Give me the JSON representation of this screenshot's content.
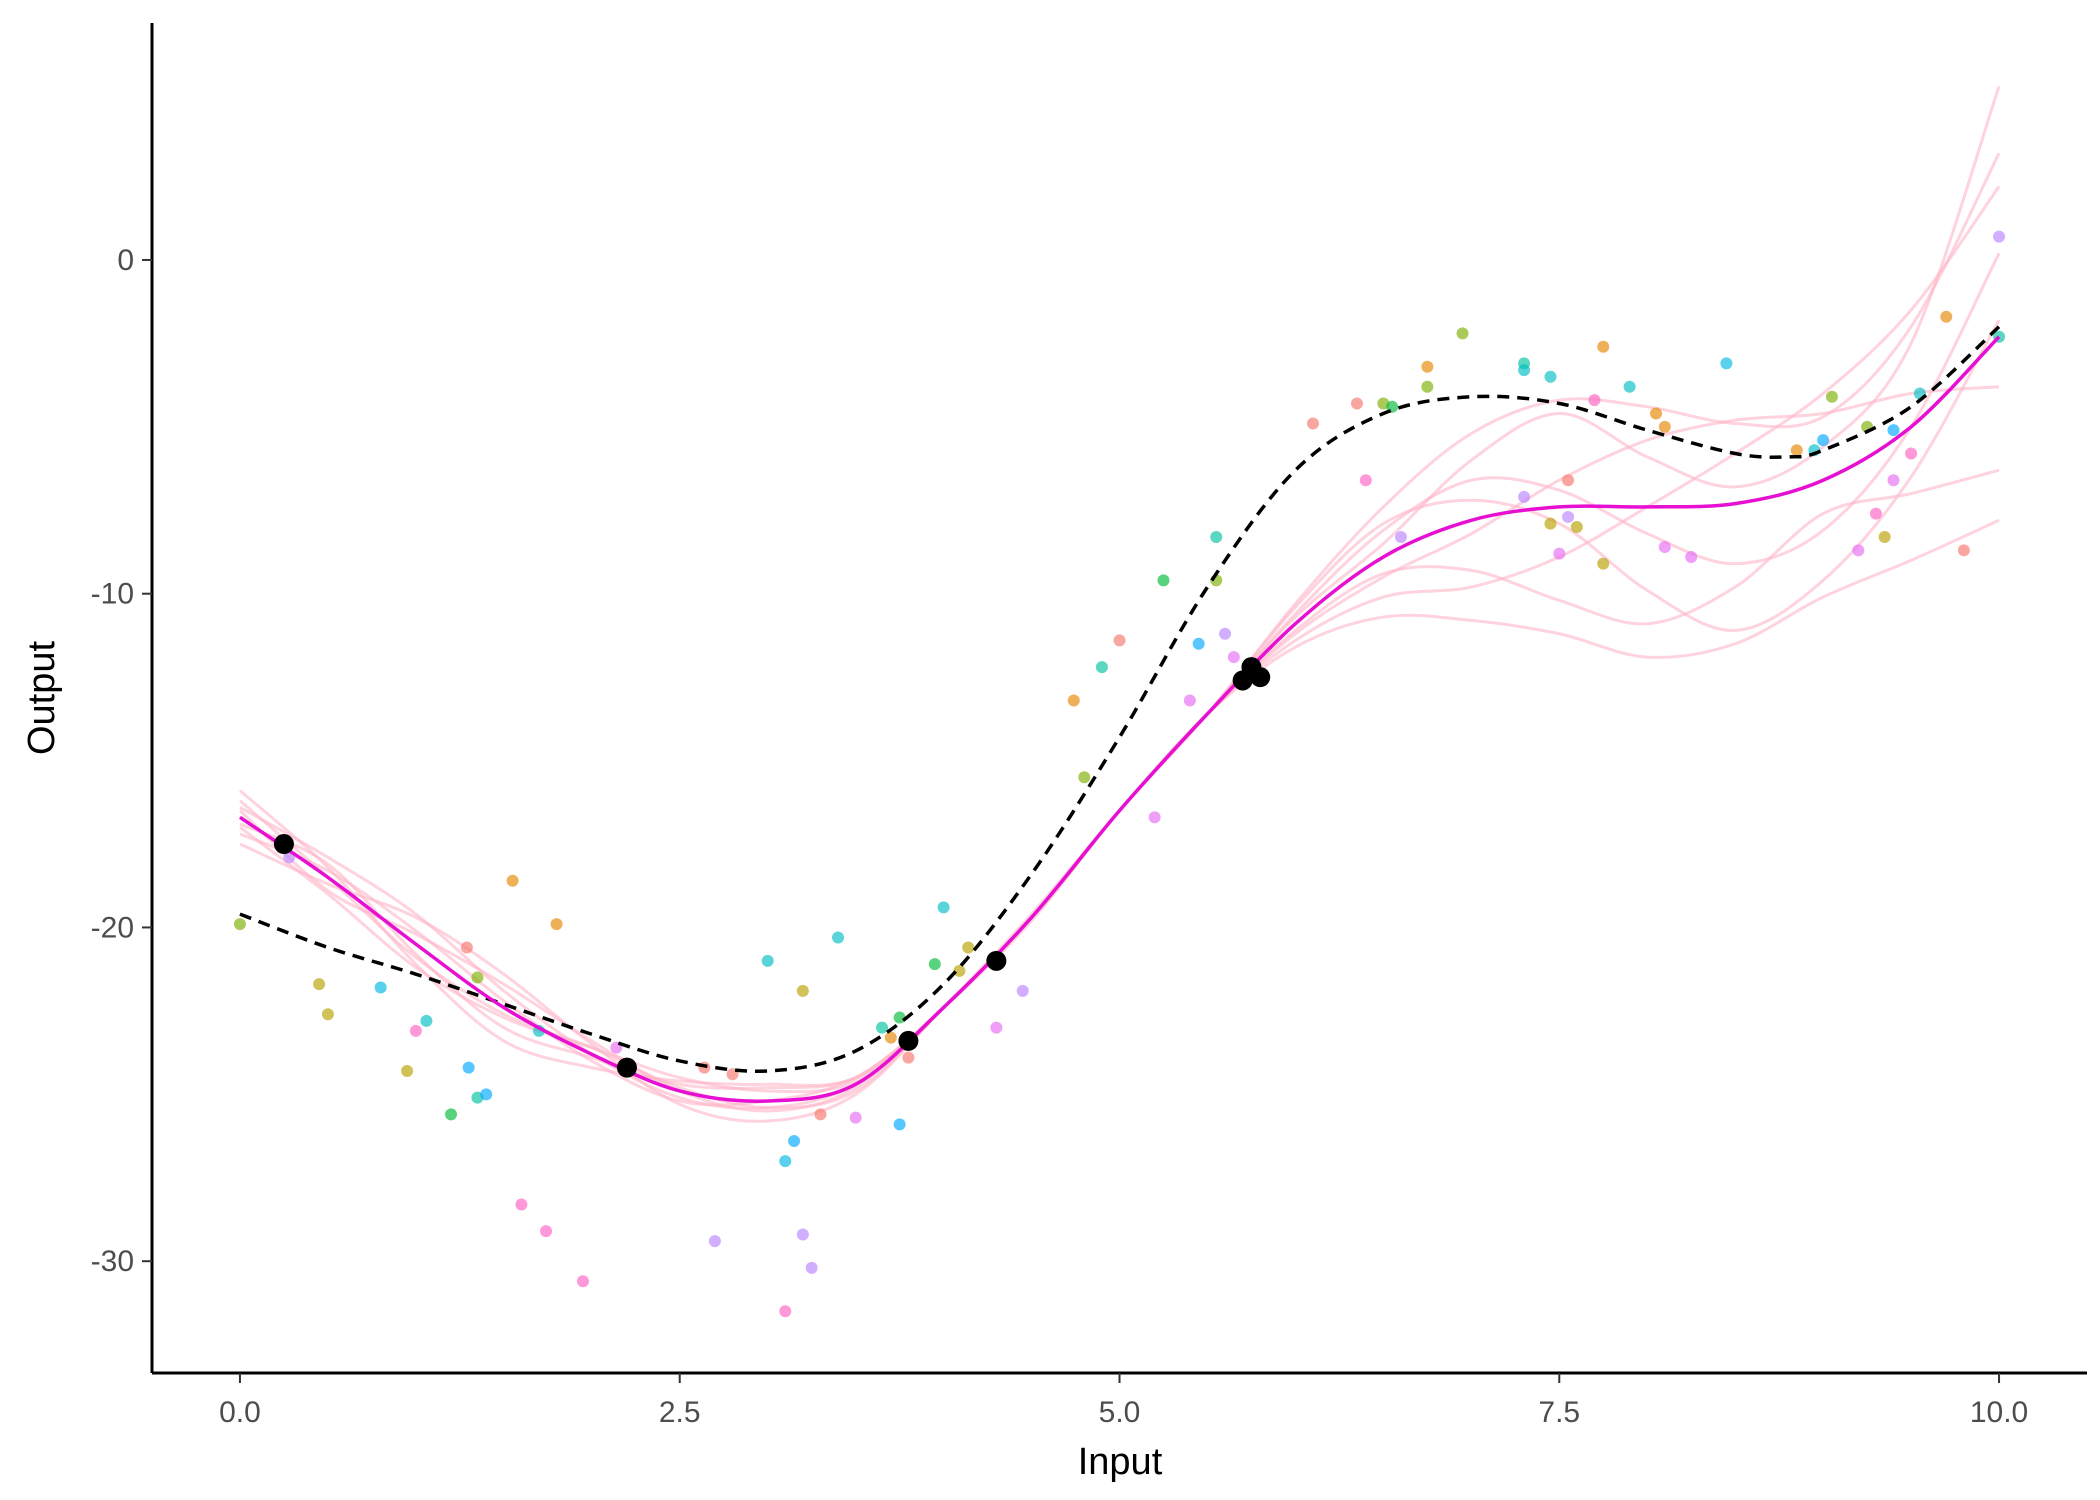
{
  "chart_data": {
    "type": "line",
    "title": "",
    "xlabel": "Input",
    "ylabel": "Output",
    "xlim": [
      -0.5,
      10.5
    ],
    "ylim": [
      -33.35,
      7.1
    ],
    "xticks": [
      0,
      2.5,
      5,
      7.5,
      10
    ],
    "xtick_labels": [
      "0.0",
      "2.5",
      "5.0",
      "7.5",
      "10.0"
    ],
    "yticks": [
      0,
      -10,
      -20,
      -30
    ],
    "ytick_labels": [
      "0",
      "-10",
      "-20",
      "-30"
    ],
    "grid": false,
    "legend": "none",
    "colors": {
      "posterior_samples": "#ffb6c8",
      "posterior_mean": "#e60fd2",
      "true_function": "#000000",
      "observations": "#000000"
    },
    "curve_x": [
      0,
      0.5,
      1,
      1.5,
      2,
      2.5,
      3,
      3.5,
      4,
      4.5,
      5,
      5.5,
      6,
      6.5,
      7,
      7.5,
      8,
      8.5,
      9,
      9.5,
      10
    ],
    "posterior_mean": [
      -16.7,
      -18.5,
      -20.5,
      -22.4,
      -23.8,
      -24.9,
      -25.2,
      -24.7,
      -22.4,
      -19.7,
      -16.5,
      -13.6,
      -10.9,
      -8.9,
      -7.8,
      -7.4,
      -7.4,
      -7.3,
      -6.6,
      -5.0,
      -2.3
    ],
    "posterior_samples": [
      [
        -15.9,
        -18.2,
        -21.1,
        -23.4,
        -24.2,
        -24.6,
        -24.7,
        -24.5,
        -22.4,
        -19.8,
        -16.5,
        -13.6,
        -10.3,
        -7.4,
        -5.2,
        -4.2,
        -4.4,
        -4.9,
        -4.7,
        -2.0,
        3.2
      ],
      [
        -17.5,
        -18.7,
        -19.7,
        -21.4,
        -23.5,
        -25.3,
        -25.8,
        -25.0,
        -22.4,
        -19.6,
        -16.5,
        -13.6,
        -11.6,
        -10.7,
        -10.8,
        -11.2,
        -11.9,
        -11.5,
        -10.1,
        -9.0,
        -7.8
      ],
      [
        -16.4,
        -17.9,
        -19.6,
        -21.9,
        -23.8,
        -25.1,
        -25.4,
        -24.7,
        -22.4,
        -19.7,
        -16.5,
        -13.6,
        -10.6,
        -8.1,
        -6.6,
        -6.9,
        -8.2,
        -9.1,
        -8.1,
        -5.0,
        0.2
      ],
      [
        -17.0,
        -19.0,
        -21.2,
        -22.7,
        -23.6,
        -24.5,
        -24.9,
        -24.6,
        -22.4,
        -19.7,
        -16.5,
        -13.6,
        -11.2,
        -9.5,
        -8.2,
        -6.6,
        -5.4,
        -4.8,
        -4.6,
        -4.0,
        -3.8
      ],
      [
        -16.2,
        -18.5,
        -20.9,
        -22.6,
        -23.6,
        -24.8,
        -25.4,
        -24.9,
        -22.4,
        -19.7,
        -16.5,
        -13.6,
        -10.4,
        -7.9,
        -7.2,
        -7.9,
        -9.9,
        -11.1,
        -9.6,
        -6.5,
        -1.8
      ],
      [
        -17.2,
        -18.3,
        -20.1,
        -22.2,
        -24.0,
        -25.2,
        -25.2,
        -24.5,
        -22.4,
        -19.7,
        -16.5,
        -13.6,
        -11.4,
        -10.1,
        -9.8,
        -8.9,
        -7.4,
        -5.8,
        -4.0,
        -1.5,
        2.2
      ],
      [
        -16.5,
        -18.9,
        -20.2,
        -21.7,
        -23.4,
        -24.9,
        -25.5,
        -24.8,
        -22.4,
        -19.7,
        -16.5,
        -13.6,
        -10.7,
        -8.5,
        -6.0,
        -4.6,
        -5.9,
        -6.8,
        -5.6,
        -2.5,
        5.2
      ],
      [
        -16.9,
        -18.1,
        -20.8,
        -23.0,
        -23.9,
        -24.7,
        -24.8,
        -24.5,
        -22.4,
        -19.7,
        -16.5,
        -13.6,
        -11.1,
        -9.4,
        -9.3,
        -10.2,
        -10.9,
        -9.8,
        -7.6,
        -7.0,
        -6.3
      ]
    ],
    "true_function": {
      "x": [
        0,
        0.5,
        1,
        1.5,
        2,
        2.5,
        3,
        3.5,
        4,
        4.5,
        5,
        5.5,
        6,
        6.5,
        7,
        7.5,
        8,
        8.5,
        8.8,
        9,
        9.5,
        10
      ],
      "y": [
        -19.6,
        -20.6,
        -21.4,
        -22.3,
        -23.2,
        -24.0,
        -24.3,
        -23.7,
        -21.7,
        -18.4,
        -14.3,
        -9.8,
        -6.3,
        -4.6,
        -4.1,
        -4.3,
        -5.1,
        -5.8,
        -5.9,
        -5.7,
        -4.4,
        -2.0
      ]
    },
    "observations": [
      [
        0.25,
        -17.5
      ],
      [
        2.2,
        -24.2
      ],
      [
        3.8,
        -23.4
      ],
      [
        4.3,
        -21.0
      ],
      [
        5.7,
        -12.6
      ],
      [
        5.75,
        -12.2
      ],
      [
        5.8,
        -12.5
      ]
    ],
    "scatter": [
      [
        0.0,
        -19.9,
        "#7CAE00"
      ],
      [
        0.28,
        -17.9,
        "#B983FF"
      ],
      [
        0.45,
        -21.7,
        "#B79F00"
      ],
      [
        0.5,
        -22.6,
        "#B79F00"
      ],
      [
        0.8,
        -21.8,
        "#00B9E3"
      ],
      [
        0.95,
        -24.3,
        "#B79F00"
      ],
      [
        1.0,
        -23.1,
        "#FF61C3"
      ],
      [
        1.06,
        -22.8,
        "#00BFC4"
      ],
      [
        1.2,
        -25.6,
        "#00BA38"
      ],
      [
        1.29,
        -20.6,
        "#F8766D"
      ],
      [
        1.3,
        -24.2,
        "#00A9FF"
      ],
      [
        1.35,
        -21.5,
        "#7CAE00"
      ],
      [
        1.35,
        -25.1,
        "#00C19F"
      ],
      [
        1.4,
        -25.0,
        "#00A9FF"
      ],
      [
        1.55,
        -18.6,
        "#E58700"
      ],
      [
        1.6,
        -28.3,
        "#FF61C3"
      ],
      [
        1.7,
        -23.1,
        "#00BFC4"
      ],
      [
        1.74,
        -29.1,
        "#FF61C3"
      ],
      [
        1.8,
        -19.9,
        "#E58700"
      ],
      [
        1.95,
        -30.6,
        "#FF61C3"
      ],
      [
        2.14,
        -23.6,
        "#E76BF3"
      ],
      [
        2.64,
        -24.2,
        "#F8766D"
      ],
      [
        2.7,
        -29.4,
        "#B983FF"
      ],
      [
        2.8,
        -24.4,
        "#F8766D"
      ],
      [
        3.0,
        -21.0,
        "#00BFC4"
      ],
      [
        3.1,
        -27.0,
        "#00B9E3"
      ],
      [
        3.1,
        -31.5,
        "#FF61C3"
      ],
      [
        3.15,
        -26.4,
        "#00A9FF"
      ],
      [
        3.2,
        -21.9,
        "#B79F00"
      ],
      [
        3.2,
        -29.2,
        "#B983FF"
      ],
      [
        3.25,
        -30.2,
        "#B983FF"
      ],
      [
        3.3,
        -25.6,
        "#F8766D"
      ],
      [
        3.4,
        -20.3,
        "#00BFC4"
      ],
      [
        3.5,
        -25.7,
        "#E76BF3"
      ],
      [
        3.65,
        -23.0,
        "#00C19F"
      ],
      [
        3.7,
        -23.3,
        "#E58700"
      ],
      [
        3.75,
        -22.7,
        "#00BA38"
      ],
      [
        3.75,
        -25.9,
        "#00A9FF"
      ],
      [
        3.8,
        -23.9,
        "#F8766D"
      ],
      [
        3.95,
        -21.1,
        "#00BA38"
      ],
      [
        4.0,
        -19.4,
        "#00BFC4"
      ],
      [
        4.09,
        -21.3,
        "#B79F00"
      ],
      [
        4.14,
        -20.6,
        "#B79F00"
      ],
      [
        4.3,
        -23.0,
        "#E76BF3"
      ],
      [
        4.45,
        -21.9,
        "#B983FF"
      ],
      [
        4.74,
        -13.2,
        "#E58700"
      ],
      [
        4.8,
        -15.5,
        "#7CAE00"
      ],
      [
        4.9,
        -12.2,
        "#00C19F"
      ],
      [
        5.0,
        -11.4,
        "#F8766D"
      ],
      [
        5.2,
        -16.7,
        "#E76BF3"
      ],
      [
        5.25,
        -9.6,
        "#00BA38"
      ],
      [
        5.4,
        -13.2,
        "#E76BF3"
      ],
      [
        5.45,
        -11.5,
        "#00A9FF"
      ],
      [
        5.55,
        -8.3,
        "#00C19F"
      ],
      [
        5.55,
        -9.6,
        "#7CAE00"
      ],
      [
        5.6,
        -11.2,
        "#B983FF"
      ],
      [
        5.65,
        -11.9,
        "#E76BF3"
      ],
      [
        6.1,
        -4.9,
        "#F8766D"
      ],
      [
        6.35,
        -4.3,
        "#F8766D"
      ],
      [
        6.4,
        -6.6,
        "#FF61C3"
      ],
      [
        6.5,
        -4.3,
        "#7CAE00"
      ],
      [
        6.55,
        -4.4,
        "#00BA38"
      ],
      [
        6.6,
        -8.3,
        "#B983FF"
      ],
      [
        6.75,
        -3.2,
        "#E58700"
      ],
      [
        6.75,
        -3.8,
        "#7CAE00"
      ],
      [
        6.95,
        -2.2,
        "#7CAE00"
      ],
      [
        7.3,
        -3.1,
        "#00C19F"
      ],
      [
        7.3,
        -3.3,
        "#00BFC4"
      ],
      [
        7.3,
        -7.1,
        "#B983FF"
      ],
      [
        7.45,
        -3.5,
        "#00BFC4"
      ],
      [
        7.45,
        -7.9,
        "#B79F00"
      ],
      [
        7.5,
        -8.8,
        "#E76BF3"
      ],
      [
        7.55,
        -6.6,
        "#F8766D"
      ],
      [
        7.55,
        -7.7,
        "#B983FF"
      ],
      [
        7.6,
        -8.0,
        "#B79F00"
      ],
      [
        7.7,
        -4.2,
        "#FF61C3"
      ],
      [
        7.75,
        -2.6,
        "#E58700"
      ],
      [
        7.75,
        -9.1,
        "#B79F00"
      ],
      [
        7.9,
        -3.8,
        "#00BFC4"
      ],
      [
        8.05,
        -4.6,
        "#E58700"
      ],
      [
        8.1,
        -5.0,
        "#E58700"
      ],
      [
        8.1,
        -8.6,
        "#E76BF3"
      ],
      [
        8.25,
        -8.9,
        "#E76BF3"
      ],
      [
        8.45,
        -3.1,
        "#00B9E3"
      ],
      [
        8.85,
        -5.7,
        "#E58700"
      ],
      [
        8.95,
        -5.7,
        "#00BFC4"
      ],
      [
        9.0,
        -5.4,
        "#00A9FF"
      ],
      [
        9.05,
        -4.1,
        "#7CAE00"
      ],
      [
        9.2,
        -8.7,
        "#E76BF3"
      ],
      [
        9.25,
        -5.0,
        "#7CAE00"
      ],
      [
        9.3,
        -7.6,
        "#FF61C3"
      ],
      [
        9.35,
        -8.3,
        "#B79F00"
      ],
      [
        9.4,
        -5.1,
        "#00A9FF"
      ],
      [
        9.4,
        -6.6,
        "#E76BF3"
      ],
      [
        9.5,
        -5.8,
        "#FF61C3"
      ],
      [
        9.55,
        -4.0,
        "#00BFC4"
      ],
      [
        9.7,
        -1.7,
        "#E58700"
      ],
      [
        9.8,
        -8.7,
        "#F8766D"
      ],
      [
        10.0,
        0.7,
        "#B983FF"
      ],
      [
        10.0,
        -2.3,
        "#00C19F"
      ]
    ]
  }
}
